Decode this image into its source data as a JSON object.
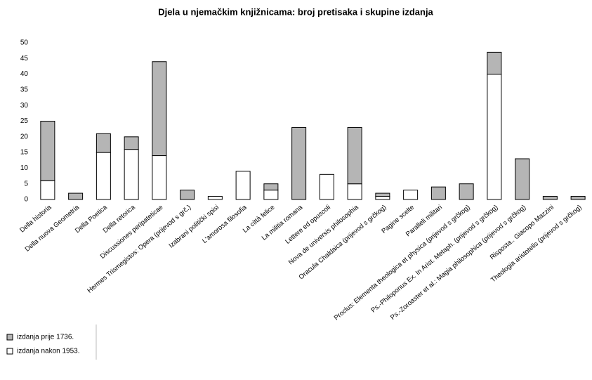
{
  "chart_data": {
    "type": "stacked_bar",
    "title": "Djela u njemačkim knjižnicama: broj pretisaka i skupine izdanja",
    "categories": [
      "Della historia",
      "Della nuova Geometria",
      "Della Poetica",
      "Della retorica",
      "Discussiones peripateticae",
      "Hermes Trismegistos: Opera (prijevod s grč.)",
      "Izabrani politički spisi",
      "L'amorosa filosofia",
      "La città felice",
      "La militia romana",
      "Lettere ed opuscoli",
      "Nova de universis philosophia",
      "Oracula Chaldaica (prijevod s grčkog)",
      "Pagine scelte",
      "Paralleli militari",
      "Proclus: Elementa theologica et physica (prijevod s grčkog)",
      "Ps.-Philoponus Ex. In Arist. Metaph. (prijevod s grčkog)",
      "Ps.-Zoroaster et al.: Magia philosophica (prijevod s grčkog)",
      "Risposta.. Giacopo Mazzini",
      "Theologia aristotelis (prijevod s grčkog)"
    ],
    "series": [
      {
        "name": "izdanja prije 1736.",
        "color": "#b5b5b5",
        "values": [
          19,
          2,
          6,
          4,
          30,
          3,
          0,
          0,
          2,
          23,
          0,
          18,
          1,
          0,
          4,
          5,
          7,
          13,
          1,
          1
        ]
      },
      {
        "name": "izdanja nakon 1953.",
        "color": "#ffffff",
        "values": [
          6,
          0,
          15,
          16,
          14,
          0,
          1,
          9,
          3,
          0,
          8,
          5,
          1,
          3,
          0,
          0,
          40,
          0,
          0,
          0
        ]
      }
    ],
    "ylim": [
      0,
      50
    ],
    "yticks": [
      0,
      5,
      10,
      15,
      20,
      25,
      30,
      35,
      40,
      45,
      50
    ]
  }
}
